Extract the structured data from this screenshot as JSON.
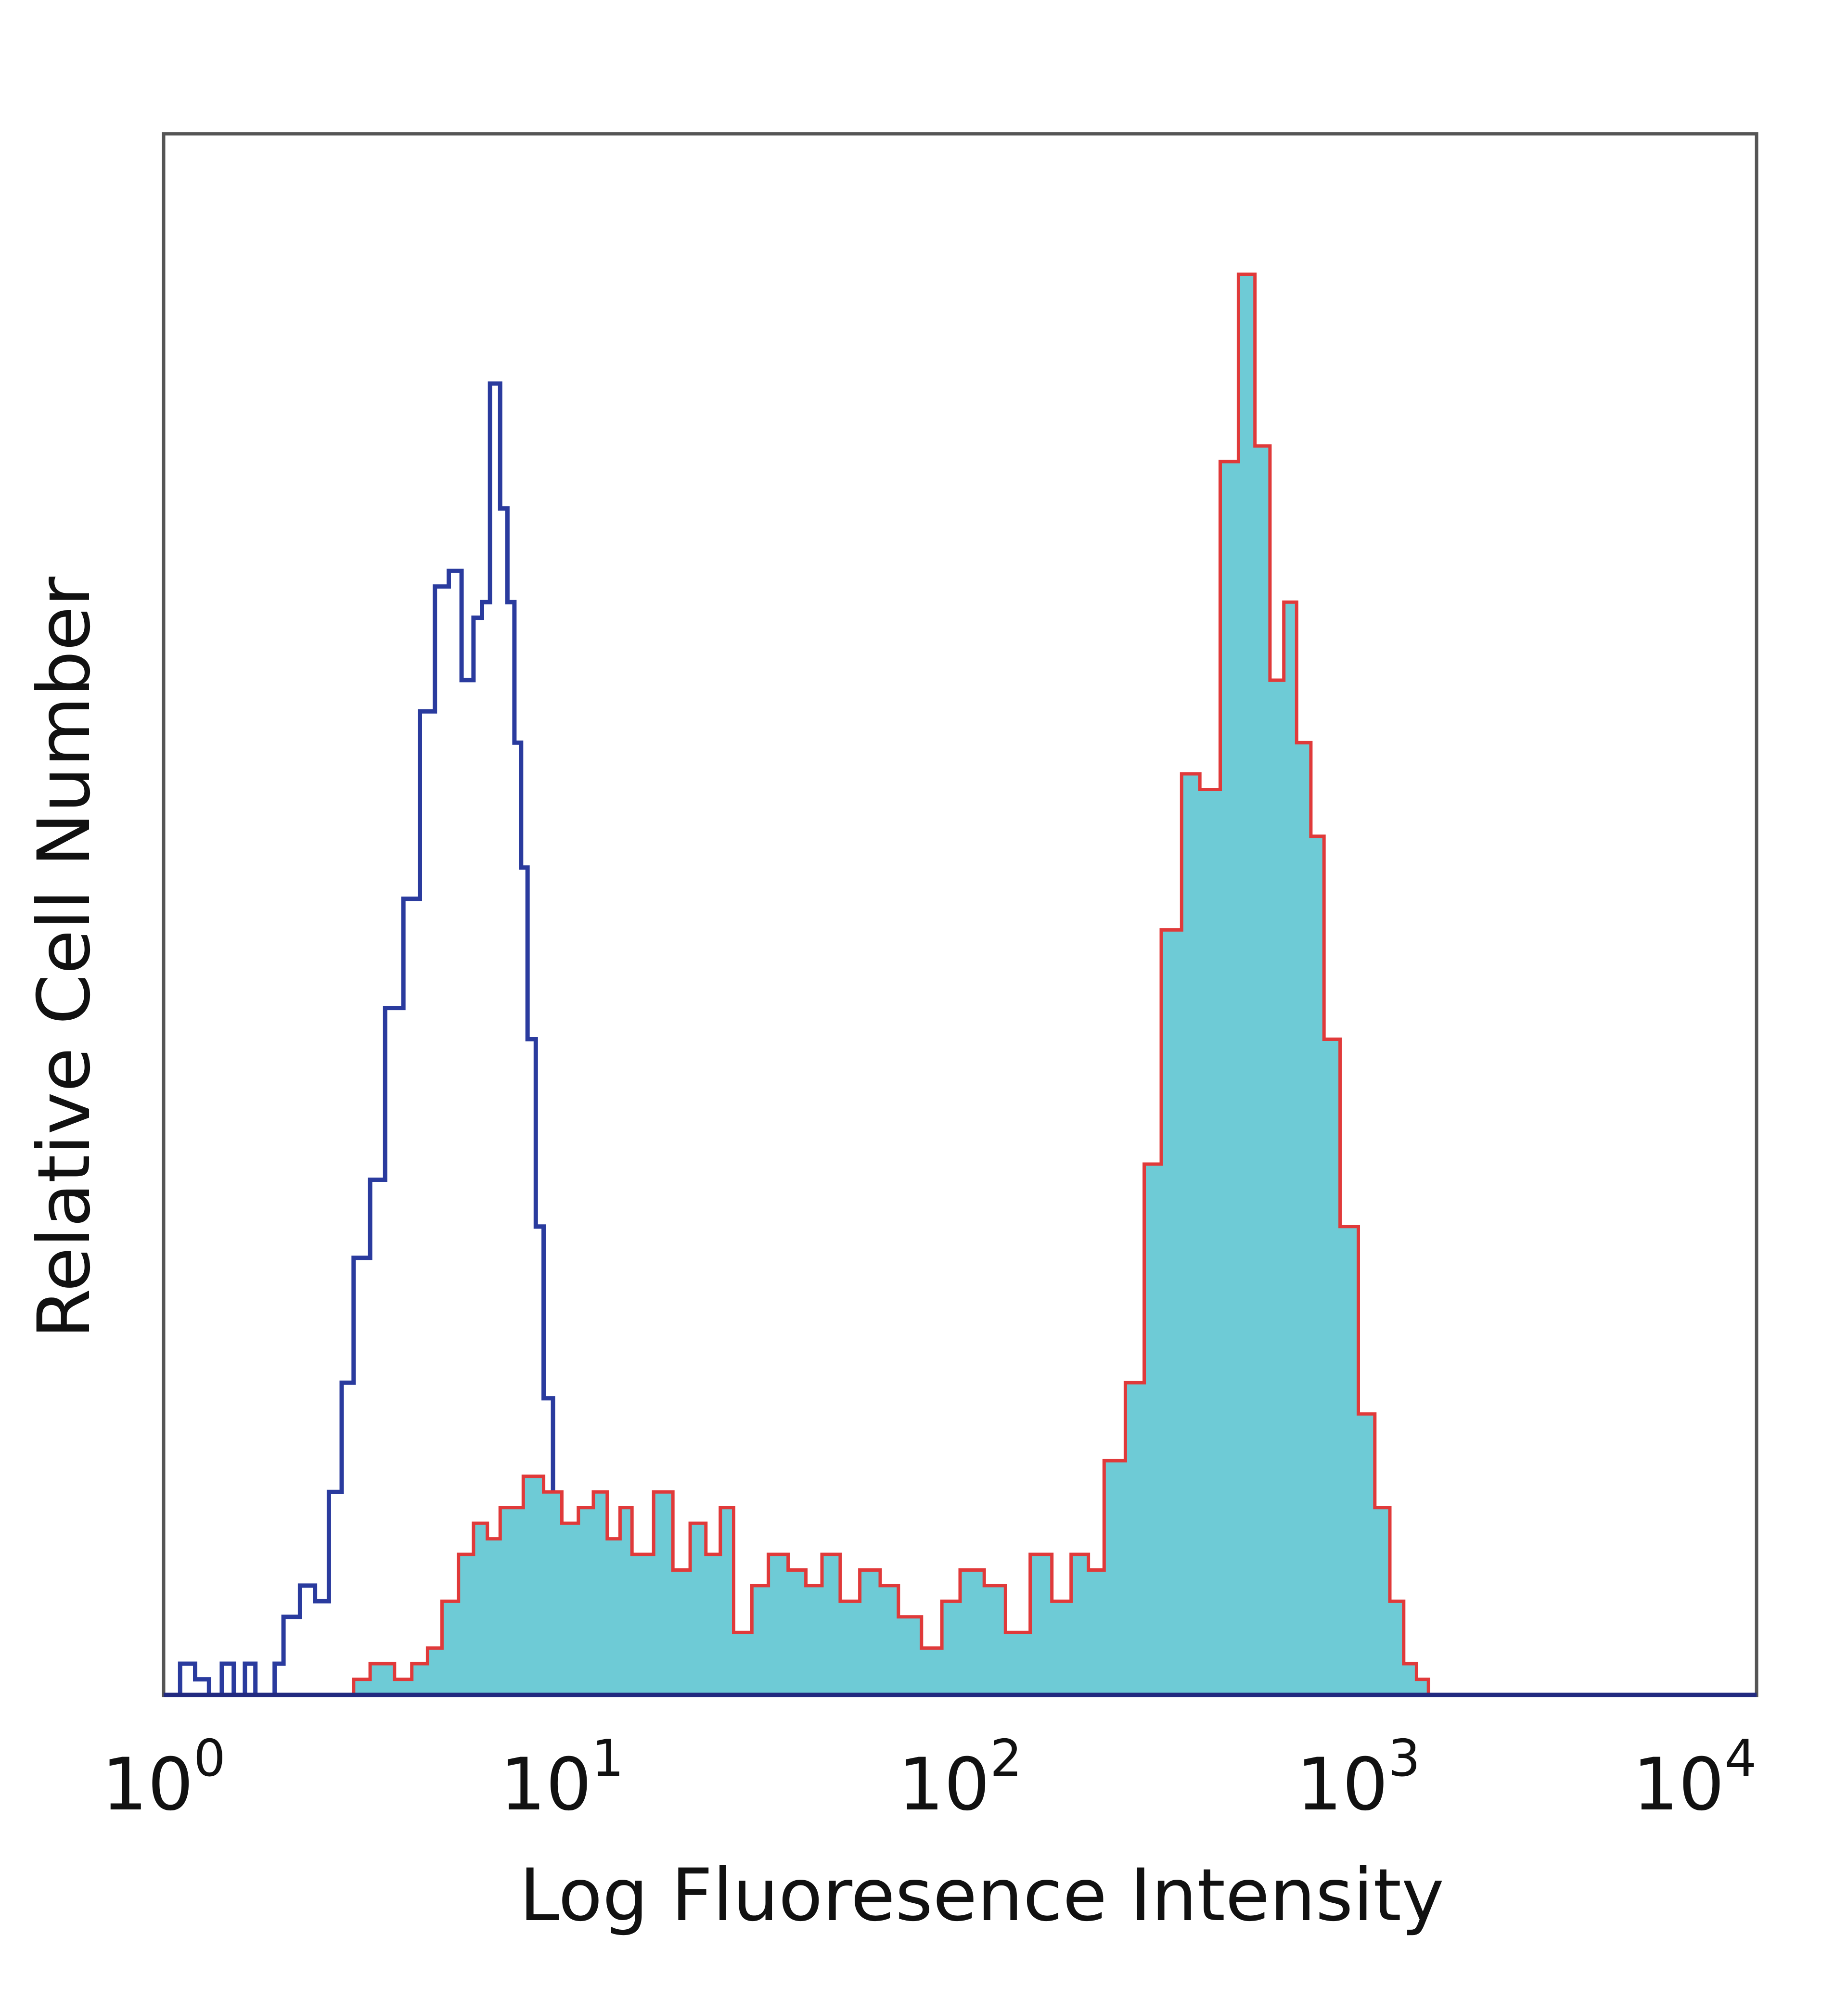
{
  "chart_data": {
    "type": "area",
    "title": "",
    "xlabel": "Log Fluoresence Intensity",
    "ylabel": "Relative Cell Number",
    "x_scale": "log",
    "xlim": [
      1,
      10000
    ],
    "ylim": [
      0,
      100
    ],
    "grid": false,
    "legend": "none",
    "x_ticks": [
      {
        "base": "10",
        "exp": "0"
      },
      {
        "base": "10",
        "exp": "1"
      },
      {
        "base": "10",
        "exp": "2"
      },
      {
        "base": "10",
        "exp": "3"
      },
      {
        "base": "10",
        "exp": "4"
      }
    ],
    "series": [
      {
        "style": "line",
        "color": "#2a3b9e",
        "x": [
          1.0,
          1.1,
          1.2,
          1.3,
          1.4,
          1.5,
          1.6,
          1.7,
          1.8,
          1.9,
          2.0,
          2.2,
          2.4,
          2.6,
          2.8,
          3.0,
          3.3,
          3.6,
          4.0,
          4.4,
          4.8,
          5.2,
          5.6,
          6.0,
          6.3,
          6.6,
          7.0,
          7.3,
          7.6,
          7.9,
          8.2,
          8.6,
          9.0,
          9.5,
          10.0,
          10.5,
          11.0,
          11.5,
          12.0,
          13.0,
          14.0,
          15.0,
          16.0,
          17.0,
          18.0,
          19.0,
          20.0,
          21.0,
          22.0,
          23.0,
          100.0,
          10000.0
        ],
        "values": [
          0,
          2,
          1,
          0,
          2,
          0,
          2,
          0,
          0,
          2,
          5,
          7,
          6,
          13,
          20,
          28,
          33,
          44,
          51,
          63,
          71,
          72,
          65,
          69,
          70,
          84,
          76,
          70,
          61,
          53,
          42,
          30,
          19,
          10,
          4,
          2,
          1,
          3,
          0,
          2,
          0,
          1,
          0,
          3,
          2,
          0,
          1,
          0,
          0,
          0,
          0,
          0
        ]
      },
      {
        "style": "filled",
        "color": "#6ecbd6",
        "outline": "#e03a3a",
        "x": [
          1.0,
          2.0,
          2.8,
          3.0,
          3.3,
          3.8,
          4.2,
          4.6,
          5.0,
          5.5,
          6.0,
          6.5,
          7.0,
          8.0,
          9.0,
          10.0,
          11.0,
          12.0,
          13.0,
          14.0,
          15.0,
          17.0,
          19.0,
          21.0,
          23.0,
          25.0,
          27.0,
          30.0,
          33.0,
          37.0,
          41.0,
          45.0,
          50.0,
          56.0,
          63.0,
          70.0,
          80.0,
          90.0,
          100.0,
          115.0,
          130.0,
          150.0,
          170.0,
          190.0,
          210.0,
          230.0,
          260.0,
          290.0,
          320.0,
          360.0,
          400.0,
          450.0,
          500.0,
          550.0,
          600.0,
          650.0,
          700.0,
          760.0,
          820.0,
          900.0,
          1000.0,
          1100.0,
          1200.0,
          1300.0,
          1400.0,
          1500.0,
          1600.0,
          10000.0
        ],
        "values": [
          0,
          0,
          0,
          1,
          2,
          1,
          2,
          3,
          6,
          9,
          11,
          10,
          12,
          14,
          13,
          11,
          12,
          13,
          10,
          12,
          9,
          13,
          8,
          11,
          9,
          12,
          4,
          7,
          9,
          8,
          7,
          9,
          6,
          8,
          7,
          5,
          3,
          6,
          8,
          7,
          4,
          9,
          6,
          9,
          8,
          15,
          20,
          34,
          49,
          59,
          58,
          79,
          91,
          80,
          65,
          70,
          61,
          55,
          42,
          30,
          18,
          12,
          6,
          2,
          1,
          0,
          0,
          0
        ]
      }
    ]
  }
}
